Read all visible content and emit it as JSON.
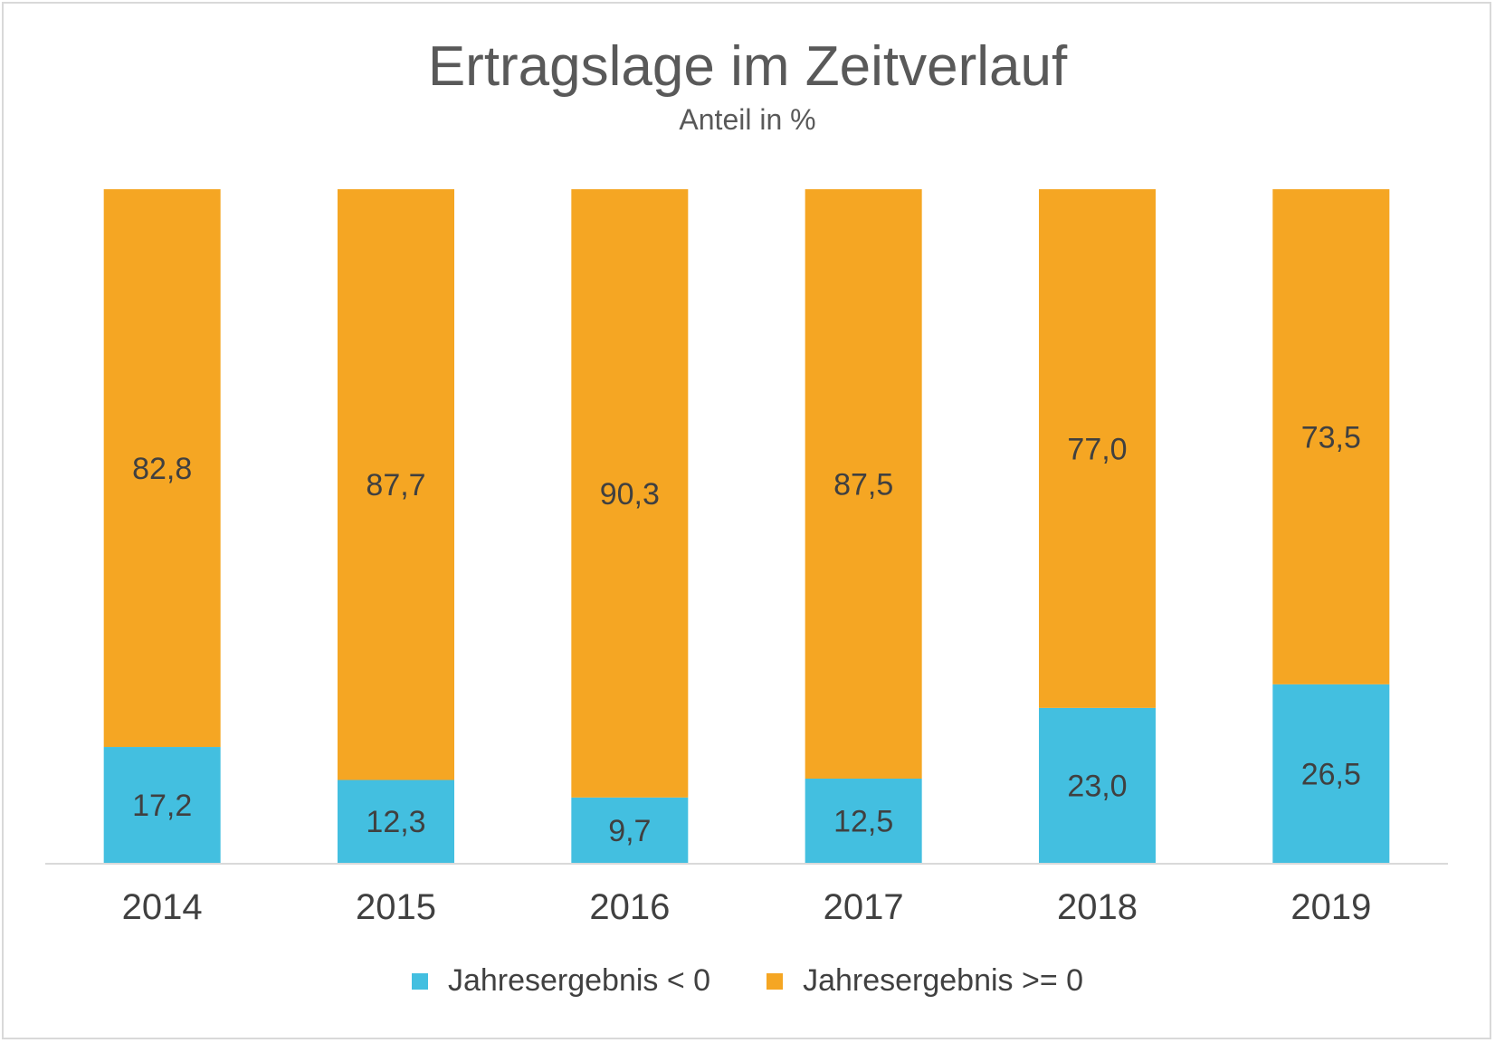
{
  "chart_data": {
    "type": "bar",
    "stacked": true,
    "percent_stacked": true,
    "title": "Ertragslage im Zeitverlauf",
    "subtitle": "Anteil in %",
    "categories": [
      "2014",
      "2015",
      "2016",
      "2017",
      "2018",
      "2019"
    ],
    "series": [
      {
        "name": "Jahresergebnis < 0",
        "color": "#43bfe0",
        "values": [
          17.2,
          12.3,
          9.7,
          12.5,
          23.0,
          26.5
        ],
        "labels": [
          "17,2",
          "12,3",
          "9,7",
          "12,5",
          "23,0",
          "26,5"
        ]
      },
      {
        "name": "Jahresergebnis >= 0",
        "color": "#f5a623",
        "values": [
          82.8,
          87.7,
          90.3,
          87.5,
          77.0,
          73.5
        ],
        "labels": [
          "82,8",
          "87,7",
          "90,3",
          "87,5",
          "77,0",
          "73,5"
        ]
      }
    ],
    "ylim": [
      0,
      100
    ],
    "grid": false,
    "legend_position": "bottom",
    "text_color": "#404040",
    "axis_color": "#d9d9d9"
  }
}
